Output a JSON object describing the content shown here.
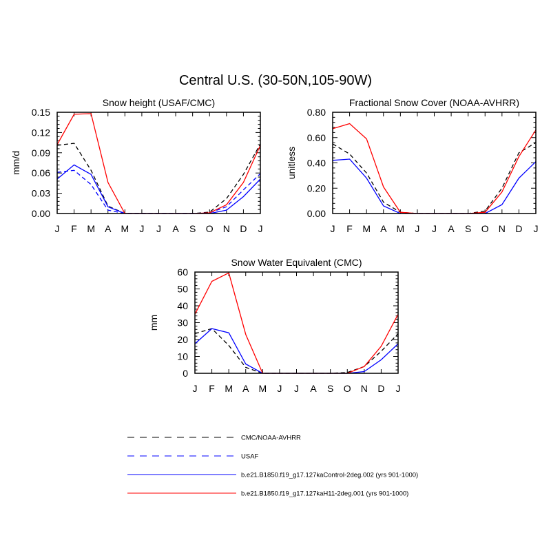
{
  "figure": {
    "title": "Central U.S. (30-50N,105-90W)"
  },
  "chart_data": [
    {
      "type": "line",
      "title": "Snow height (USAF/CMC)",
      "ylabel": "mm/d",
      "xlabel": "",
      "categories": [
        "J",
        "F",
        "M",
        "A",
        "M",
        "J",
        "J",
        "A",
        "S",
        "O",
        "N",
        "D",
        "J"
      ],
      "ylim": [
        0,
        0.15
      ],
      "yticks": [
        "0.00",
        "0.03",
        "0.06",
        "0.09",
        "0.12",
        "0.15"
      ],
      "series": [
        {
          "name": "CMC/NOAA-AVHRR",
          "values": [
            0.101,
            0.104,
            0.064,
            0.011,
            0.0,
            0.0,
            0.0,
            0.0,
            0.0,
            0.002,
            0.022,
            0.058,
            0.103
          ]
        },
        {
          "name": "USAF",
          "values": [
            0.061,
            0.064,
            0.043,
            0.005,
            0.0,
            0.0,
            0.0,
            0.0,
            0.0,
            0.001,
            0.01,
            0.035,
            0.059
          ]
        },
        {
          "name": "b.e21.B1850.f19_g17.127kaControl-2deg.002 (yrs 901-1000)",
          "values": [
            0.051,
            0.072,
            0.058,
            0.01,
            0.0,
            0.0,
            0.0,
            0.0,
            0.0,
            0.0,
            0.005,
            0.025,
            0.051
          ]
        },
        {
          "name": "b.e21.B1850.f19_g17.127kaH11-2deg.001 (yrs 901-1000)",
          "values": [
            0.102,
            0.147,
            0.148,
            0.046,
            0.0,
            0.0,
            0.0,
            0.0,
            0.0,
            0.001,
            0.013,
            0.046,
            0.101
          ]
        }
      ]
    },
    {
      "type": "line",
      "title": "Fractional Snow Cover (NOAA-AVHRR)",
      "ylabel": "unitless",
      "xlabel": "",
      "categories": [
        "J",
        "F",
        "M",
        "A",
        "M",
        "J",
        "J",
        "A",
        "S",
        "O",
        "N",
        "D",
        "J"
      ],
      "ylim": [
        0,
        0.8
      ],
      "yticks": [
        "0.00",
        "0.20",
        "0.40",
        "0.60",
        "0.80"
      ],
      "series": [
        {
          "name": "CMC/NOAA-AVHRR",
          "values": [
            0.55,
            0.47,
            0.32,
            0.09,
            0.01,
            0.0,
            0.0,
            0.0,
            0.0,
            0.02,
            0.2,
            0.48,
            0.56
          ]
        },
        {
          "name": "b.e21.B1850.f19_g17.127kaControl-2deg.002 (yrs 901-1000)",
          "values": [
            0.42,
            0.43,
            0.28,
            0.06,
            0.0,
            0.0,
            0.0,
            0.0,
            0.0,
            0.0,
            0.07,
            0.28,
            0.41
          ]
        },
        {
          "name": "b.e21.B1850.f19_g17.127kaH11-2deg.001 (yrs 901-1000)",
          "values": [
            0.67,
            0.71,
            0.59,
            0.21,
            0.01,
            0.0,
            0.0,
            0.0,
            0.0,
            0.01,
            0.17,
            0.45,
            0.66
          ]
        }
      ]
    },
    {
      "type": "line",
      "title": "Snow Water Equivalent (CMC)",
      "ylabel": "mm",
      "xlabel": "",
      "categories": [
        "J",
        "F",
        "M",
        "A",
        "M",
        "J",
        "J",
        "A",
        "S",
        "O",
        "N",
        "D",
        "J"
      ],
      "ylim": [
        0,
        60
      ],
      "yticks": [
        "0",
        "10",
        "20",
        "30",
        "40",
        "50",
        "60"
      ],
      "series": [
        {
          "name": "CMC/NOAA-AVHRR",
          "values": [
            23.5,
            26.5,
            16.5,
            3.5,
            0.0,
            0.0,
            0.0,
            0.0,
            0.0,
            0.5,
            4.0,
            13.0,
            23.5
          ]
        },
        {
          "name": "b.e21.B1850.f19_g17.127kaControl-2deg.002 (yrs 901-1000)",
          "values": [
            17.5,
            26.5,
            24.0,
            5.5,
            0.0,
            0.0,
            0.0,
            0.0,
            0.0,
            0.0,
            1.0,
            8.0,
            17.5
          ]
        },
        {
          "name": "b.e21.B1850.f19_g17.127kaH11-2deg.001 (yrs 901-1000)",
          "values": [
            35.0,
            54.5,
            59.5,
            23.0,
            0.0,
            0.0,
            0.0,
            0.0,
            0.0,
            0.0,
            4.0,
            16.0,
            35.0
          ]
        }
      ]
    }
  ],
  "legend": {
    "items": [
      {
        "label": "CMC/NOAA-AVHRR",
        "color": "#000000",
        "dash": true
      },
      {
        "label": "USAF",
        "color": "#0000ff",
        "dash": true
      },
      {
        "label": "b.e21.B1850.f19_g17.127kaControl-2deg.002 (yrs 901-1000)",
        "color": "#0000ff",
        "dash": false
      },
      {
        "label": "b.e21.B1850.f19_g17.127kaH11-2deg.001 (yrs 901-1000)",
        "color": "#ff0000",
        "dash": false
      }
    ]
  },
  "series_styles": {
    "CMC/NOAA-AVHRR": {
      "color": "#000000",
      "dash": true
    },
    "USAF": {
      "color": "#0000ff",
      "dash": true
    },
    "b.e21.B1850.f19_g17.127kaControl-2deg.002 (yrs 901-1000)": {
      "color": "#0000ff",
      "dash": false
    },
    "b.e21.B1850.f19_g17.127kaH11-2deg.001 (yrs 901-1000)": {
      "color": "#ff0000",
      "dash": false
    }
  }
}
